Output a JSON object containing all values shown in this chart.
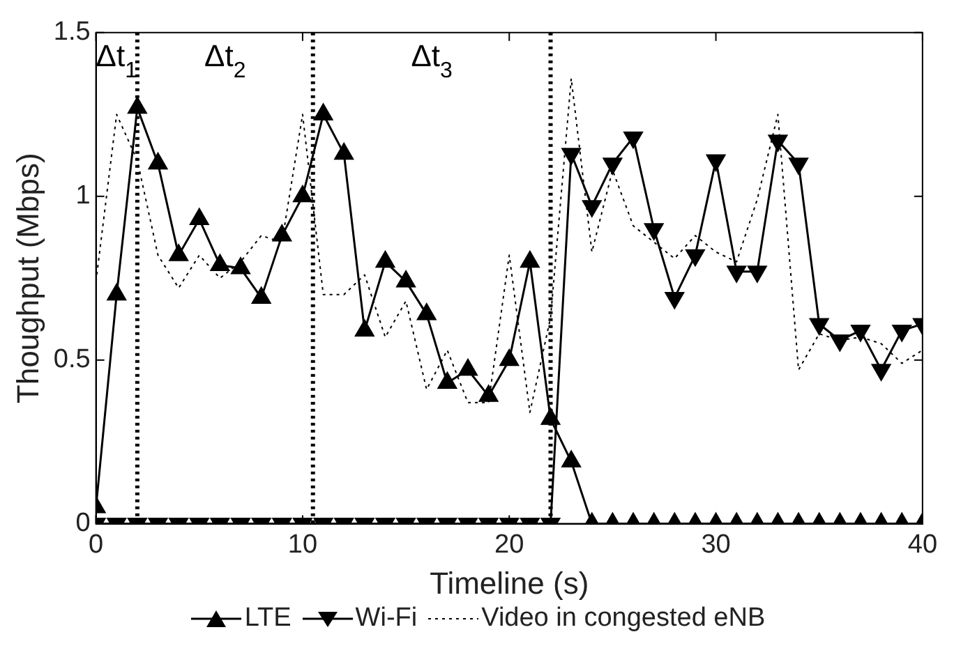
{
  "chart_data": {
    "type": "line",
    "xlabel": "Timeline (s)",
    "ylabel": "Thoughput (Mbps)",
    "x": [
      0,
      1,
      2,
      3,
      4,
      5,
      6,
      7,
      8,
      9,
      10,
      11,
      12,
      13,
      14,
      15,
      16,
      17,
      18,
      19,
      20,
      21,
      22,
      23,
      24,
      25,
      26,
      27,
      28,
      29,
      30,
      31,
      32,
      33,
      34,
      35,
      36,
      37,
      38,
      39,
      40
    ],
    "xlim": [
      0,
      40
    ],
    "xticks": [
      0,
      10,
      20,
      30,
      40
    ],
    "ylim": [
      0,
      1.5
    ],
    "yticks": [
      0,
      0.5,
      1,
      1.5
    ],
    "grid": false,
    "legend": "bottom",
    "series": [
      {
        "name": "LTE",
        "color": "#000000",
        "marker": "triangle",
        "line_style": "solid",
        "values": [
          0.05,
          0.7,
          1.27,
          1.1,
          0.82,
          0.93,
          0.79,
          0.78,
          0.69,
          0.88,
          1.0,
          1.25,
          1.13,
          0.59,
          0.8,
          0.74,
          0.64,
          0.43,
          0.47,
          0.39,
          0.5,
          0.8,
          0.32,
          0.19,
          0,
          0,
          0,
          0,
          0,
          0,
          0,
          0,
          0,
          0,
          0,
          0,
          0,
          0,
          0,
          0,
          0
        ]
      },
      {
        "name": "Wi-Fi",
        "color": "#000000",
        "marker": "triangle-down",
        "line_style": "solid",
        "values": [
          0,
          0,
          0,
          0,
          0,
          0,
          0,
          0,
          0,
          0,
          0,
          0,
          0,
          0,
          0,
          0,
          0,
          0,
          0,
          0,
          0,
          0,
          0,
          1.13,
          0.97,
          1.1,
          1.18,
          0.9,
          0.69,
          0.82,
          1.11,
          0.77,
          0.77,
          1.17,
          1.1,
          0.61,
          0.56,
          0.59,
          0.47,
          0.59,
          0.61
        ]
      },
      {
        "name": "Video in congested eNB",
        "color": "#000000",
        "marker": "none",
        "line_style": "dotted",
        "values": [
          0.74,
          1.25,
          1.11,
          0.82,
          0.72,
          0.82,
          0.75,
          0.8,
          0.88,
          0.86,
          1.25,
          0.7,
          0.7,
          0.76,
          0.57,
          0.68,
          0.41,
          0.53,
          0.37,
          0.37,
          0.82,
          0.34,
          0.63,
          1.36,
          0.83,
          1.08,
          0.91,
          0.86,
          0.81,
          0.88,
          0.83,
          0.8,
          0.99,
          1.25,
          0.47,
          0.58,
          0.56,
          0.57,
          0.55,
          0.49,
          0.53
        ]
      }
    ],
    "ref_lines": [
      {
        "axis": "x",
        "value": 2,
        "color": "#000000",
        "line_style": "dotted"
      },
      {
        "axis": "x",
        "value": 10.5,
        "color": "#000000",
        "line_style": "dotted"
      },
      {
        "axis": "x",
        "value": 22,
        "color": "#000000",
        "line_style": "dotted"
      }
    ],
    "annotations": [
      "Δt$_{1}$",
      "Δt$_{2}$",
      "Δt$_{3}$"
    ]
  }
}
